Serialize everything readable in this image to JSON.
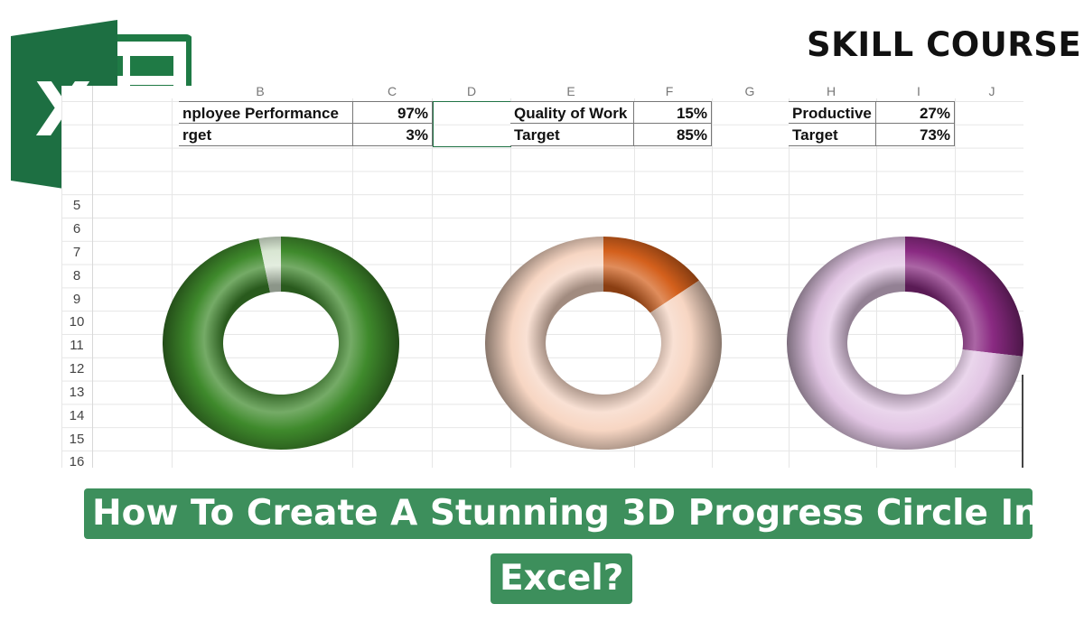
{
  "brand": "SKILL COURSE",
  "headline": {
    "line1": "How To Create A Stunning 3D Progress Circle In",
    "line2": "Excel?"
  },
  "colors": {
    "accent": "#3d8f5c",
    "excel_green": "#217346"
  },
  "spreadsheet": {
    "column_headers": [
      "B",
      "C",
      "D",
      "E",
      "F",
      "G",
      "H",
      "I",
      "J"
    ],
    "row_headers": [
      "5",
      "6",
      "7",
      "8",
      "9",
      "10",
      "11",
      "12",
      "13",
      "14",
      "15",
      "16"
    ],
    "tables": [
      {
        "rows": [
          {
            "label": "nployee Performance",
            "value": "97%"
          },
          {
            "label": "rget",
            "value": "3%"
          }
        ]
      },
      {
        "rows": [
          {
            "label": "Quality of Work",
            "value": "15%"
          },
          {
            "label": "Target",
            "value": "85%"
          }
        ]
      },
      {
        "rows": [
          {
            "label": "Productive",
            "value": "27%"
          },
          {
            "label": "Target",
            "value": "73%"
          }
        ]
      }
    ]
  },
  "chart_data": [
    {
      "type": "pie",
      "variant": "doughnut-3d",
      "categories": [
        "Employee Performance",
        "Target"
      ],
      "values": [
        97,
        3
      ],
      "colors": [
        "#3f8a2c",
        "#d8e6d2"
      ]
    },
    {
      "type": "pie",
      "variant": "doughnut-3d",
      "categories": [
        "Quality of Work",
        "Target"
      ],
      "values": [
        15,
        85
      ],
      "colors": [
        "#d4601c",
        "#f7d6c3"
      ]
    },
    {
      "type": "pie",
      "variant": "doughnut-3d",
      "categories": [
        "Productive",
        "Target"
      ],
      "values": [
        27,
        73
      ],
      "colors": [
        "#8a2a82",
        "#e2c6e4"
      ]
    }
  ]
}
